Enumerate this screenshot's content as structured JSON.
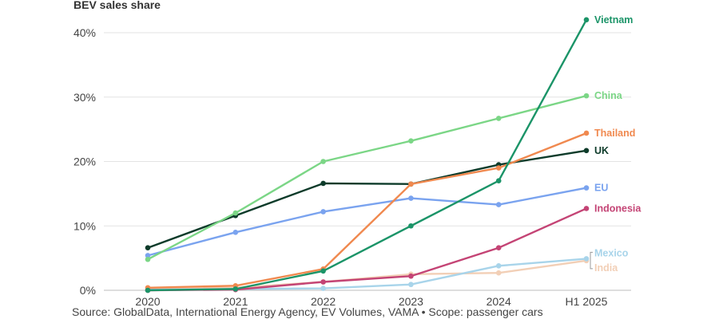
{
  "chart_data": {
    "type": "line",
    "title": "BEV sales share",
    "categories": [
      "2020",
      "2021",
      "2022",
      "2023",
      "2024",
      "H1 2025"
    ],
    "ylim": [
      0,
      40
    ],
    "yticks": [
      0,
      10,
      20,
      30,
      40
    ],
    "ytick_labels": [
      "0%",
      "10%",
      "20%",
      "30%",
      "40%"
    ],
    "grid": true,
    "series": [
      {
        "name": "Vietnam",
        "color": "#1b9468",
        "values": [
          0,
          0.2,
          3,
          10,
          17,
          42
        ]
      },
      {
        "name": "China",
        "color": "#7bd686",
        "values": [
          4.8,
          12,
          20,
          23.2,
          26.7,
          30.2
        ]
      },
      {
        "name": "Thailand",
        "color": "#f0894f",
        "values": [
          0.4,
          0.7,
          3.3,
          16.5,
          19,
          24.4
        ]
      },
      {
        "name": "UK",
        "color": "#0d3b2a",
        "values": [
          6.6,
          11.6,
          16.6,
          16.5,
          19.5,
          21.7
        ]
      },
      {
        "name": "EU",
        "color": "#7aa3ef",
        "values": [
          5.4,
          9,
          12.2,
          14.3,
          13.3,
          15.9
        ]
      },
      {
        "name": "Indonesia",
        "color": "#c44475",
        "values": [
          0,
          0.1,
          1.3,
          2.2,
          6.6,
          12.7
        ]
      },
      {
        "name": "Mexico",
        "color": "#a8d4ea",
        "values": [
          0.1,
          0.2,
          0.3,
          0.9,
          3.8,
          4.9
        ]
      },
      {
        "name": "India",
        "color": "#f2cfb6",
        "values": [
          0.2,
          0.4,
          1.3,
          2.5,
          2.7,
          4.6
        ]
      }
    ],
    "source": "Source: GlobalData, International Energy Agency, EV Volumes, VAMA • Scope: passenger cars"
  }
}
